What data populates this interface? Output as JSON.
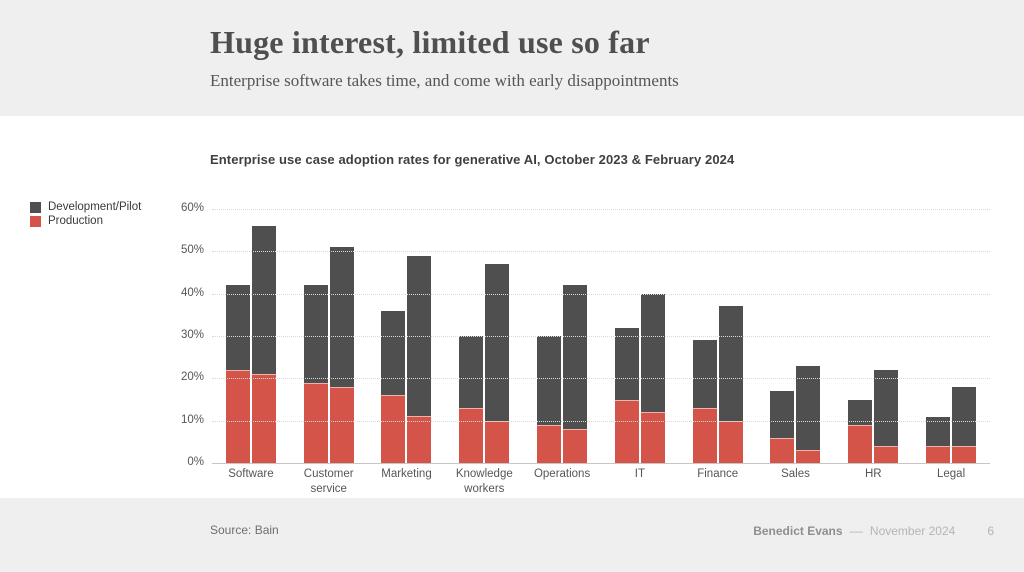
{
  "slide": {
    "title": "Huge interest, limited use so far",
    "subtitle": "Enterprise software takes time, and come with early disappointments"
  },
  "footer": {
    "source": "Source: Bain",
    "author": "Benedict Evans",
    "dash": "––",
    "date": "November 2024",
    "page_number": "6"
  },
  "chart_data": {
    "type": "bar",
    "stacked": true,
    "title": "Enterprise use case adoption rates for generative AI, October 2023 & February 2024",
    "ylim": [
      0,
      60
    ],
    "ytick_step": 10,
    "yticks": [
      "0%",
      "10%",
      "20%",
      "30%",
      "40%",
      "50%",
      "60%"
    ],
    "grid": "horizontal-dotted",
    "legend_position": "left",
    "legend": [
      {
        "label": "Development/Pilot",
        "color": "#4f4f4f"
      },
      {
        "label": "Production",
        "color": "#d5544a"
      }
    ],
    "bar_periods": [
      "October 2023",
      "February 2024"
    ],
    "categories": [
      "Software",
      "Customer service",
      "Marketing",
      "Knowledge workers",
      "Operations",
      "IT",
      "Finance",
      "Sales",
      "HR",
      "Legal"
    ],
    "groups": [
      {
        "category": "Software",
        "bars": [
          {
            "production": 22,
            "development_pilot": 20,
            "total": 42
          },
          {
            "production": 21,
            "development_pilot": 35,
            "total": 56
          }
        ]
      },
      {
        "category": "Customer service",
        "bars": [
          {
            "production": 19,
            "development_pilot": 23,
            "total": 42
          },
          {
            "production": 18,
            "development_pilot": 33,
            "total": 51
          }
        ]
      },
      {
        "category": "Marketing",
        "bars": [
          {
            "production": 16,
            "development_pilot": 20,
            "total": 36
          },
          {
            "production": 11,
            "development_pilot": 38,
            "total": 49
          }
        ]
      },
      {
        "category": "Knowledge workers",
        "bars": [
          {
            "production": 13,
            "development_pilot": 17,
            "total": 30
          },
          {
            "production": 10,
            "development_pilot": 37,
            "total": 47
          }
        ]
      },
      {
        "category": "Operations",
        "bars": [
          {
            "production": 9,
            "development_pilot": 21,
            "total": 30
          },
          {
            "production": 8,
            "development_pilot": 34,
            "total": 42
          }
        ]
      },
      {
        "category": "IT",
        "bars": [
          {
            "production": 15,
            "development_pilot": 17,
            "total": 32
          },
          {
            "production": 12,
            "development_pilot": 28,
            "total": 40
          }
        ]
      },
      {
        "category": "Finance",
        "bars": [
          {
            "production": 13,
            "development_pilot": 16,
            "total": 29
          },
          {
            "production": 10,
            "development_pilot": 27,
            "total": 37
          }
        ]
      },
      {
        "category": "Sales",
        "bars": [
          {
            "production": 6,
            "development_pilot": 11,
            "total": 17
          },
          {
            "production": 3,
            "development_pilot": 20,
            "total": 23
          }
        ]
      },
      {
        "category": "HR",
        "bars": [
          {
            "production": 9,
            "development_pilot": 6,
            "total": 15
          },
          {
            "production": 4,
            "development_pilot": 18,
            "total": 22
          }
        ]
      },
      {
        "category": "Legal",
        "bars": [
          {
            "production": 4,
            "development_pilot": 7,
            "total": 11
          },
          {
            "production": 4,
            "development_pilot": 14,
            "total": 18
          }
        ]
      }
    ]
  }
}
